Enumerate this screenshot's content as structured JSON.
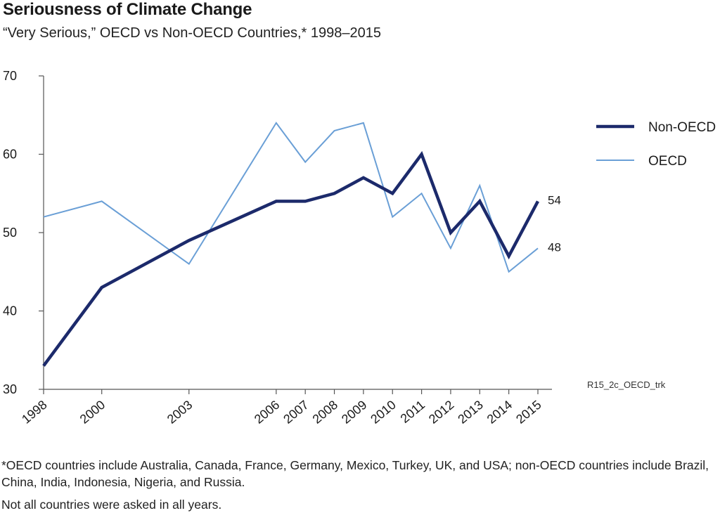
{
  "header": {
    "title": "Seriousness of Climate Change",
    "subtitle": "“Very Serious,” OECD vs Non-OECD Countries,* 1998–2015"
  },
  "chart_data": {
    "type": "line",
    "title": "Seriousness of Climate Change",
    "subtitle": "“Very Serious,” OECD vs Non-OECD Countries,* 1998–2015",
    "xlabel": "",
    "ylabel": "",
    "x": [
      1998,
      2000,
      2003,
      2006,
      2007,
      2008,
      2009,
      2010,
      2011,
      2012,
      2013,
      2014,
      2015
    ],
    "x_tick_labels": [
      "1998",
      "2000",
      "2003",
      "2006",
      "2007",
      "2008",
      "2009",
      "2010",
      "2011",
      "2012",
      "2013",
      "2014",
      "2015"
    ],
    "ylim": [
      30,
      70
    ],
    "y_ticks": [
      30,
      40,
      50,
      60,
      70
    ],
    "y_tick_labels": [
      "30",
      "40",
      "50",
      "60",
      "70"
    ],
    "grid": false,
    "legend_position": "right",
    "series": [
      {
        "name": "Non-OECD",
        "color": "#1c2a6b",
        "values": [
          33,
          43,
          49,
          54,
          54,
          55,
          57,
          55,
          60,
          50,
          54,
          47,
          54
        ],
        "end_label": "54"
      },
      {
        "name": "OECD",
        "color": "#6a9fd6",
        "values": [
          52,
          54,
          46,
          64,
          59,
          63,
          64,
          52,
          55,
          48,
          56,
          45,
          48
        ],
        "end_label": "48"
      }
    ],
    "code_label": "R15_2c_OECD_trk"
  },
  "footnotes": {
    "note1": "*OECD countries include Australia, Canada, France, Germany, Mexico, Turkey, UK, and USA; non-OECD countries include Brazil, China, India, Indonesia, Nigeria, and Russia.",
    "note2": "Not all countries were asked in all years."
  }
}
